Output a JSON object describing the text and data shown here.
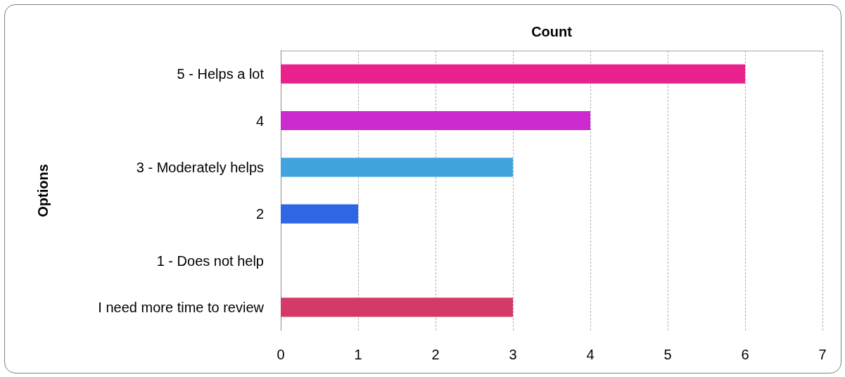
{
  "chart_data": {
    "type": "bar",
    "orientation": "horizontal",
    "xlabel": "Count",
    "ylabel": "Options",
    "categories": [
      "5 - Helps a lot",
      "4",
      "3 - Moderately helps",
      "2",
      "1 - Does not help",
      "I need more time to review"
    ],
    "values": [
      6,
      4,
      3,
      1,
      0,
      3
    ],
    "colors": [
      "#e9218c",
      "#cc2ccf",
      "#42a3de",
      "#2f66e3",
      null,
      "#d43a67"
    ],
    "xlim": [
      0,
      7
    ],
    "xticks": [
      0,
      1,
      2,
      3,
      4,
      5,
      6,
      7
    ],
    "grid": "x"
  }
}
